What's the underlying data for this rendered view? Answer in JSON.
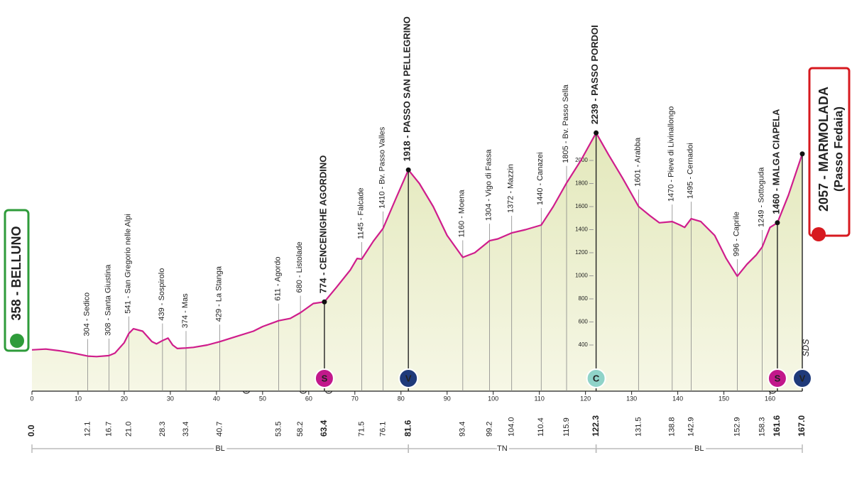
{
  "chart_data": {
    "type": "area",
    "color": "#cf1d8c",
    "xlim": [
      0,
      167
    ],
    "ylim": [
      0,
      2400
    ],
    "xticks": [
      0,
      10,
      20,
      30,
      40,
      50,
      60,
      70,
      80,
      90,
      100,
      110,
      120,
      130,
      140,
      150,
      160
    ],
    "yticks": [
      400,
      600,
      800,
      1000,
      1200,
      1400,
      1600,
      1800,
      2000
    ],
    "x": [
      0,
      3,
      6,
      9,
      12.1,
      14,
      16.7,
      18,
      20,
      21,
      22,
      24,
      26,
      27,
      28.3,
      29.5,
      30.5,
      31.5,
      33.4,
      35,
      38,
      40.7,
      44,
      48,
      50,
      53.5,
      56,
      58.2,
      61,
      63.4,
      66,
      69,
      70.5,
      71.5,
      74,
      76.1,
      79,
      81.6,
      84,
      87,
      90,
      93.4,
      96,
      99.2,
      101,
      104,
      107,
      110.4,
      113,
      115.9,
      119,
      122.3,
      125,
      128,
      131.5,
      134,
      136,
      138.8,
      140.5,
      141.5,
      142.9,
      145,
      148,
      150.5,
      152.9,
      155,
      157,
      158.3,
      160,
      161.6,
      164,
      167
    ],
    "values": [
      358,
      365,
      350,
      330,
      304,
      300,
      308,
      330,
      420,
      500,
      541,
      520,
      430,
      410,
      439,
      460,
      400,
      370,
      374,
      380,
      400,
      429,
      470,
      520,
      560,
      611,
      630,
      680,
      760,
      774,
      900,
      1050,
      1150,
      1145,
      1300,
      1410,
      1680,
      1918,
      1800,
      1600,
      1350,
      1160,
      1200,
      1304,
      1320,
      1372,
      1400,
      1440,
      1600,
      1805,
      2000,
      2239,
      2050,
      1850,
      1601,
      1520,
      1460,
      1470,
      1440,
      1420,
      1495,
      1470,
      1350,
      1150,
      996,
      1100,
      1180,
      1249,
      1420,
      1460,
      1700,
      2057
    ],
    "start": {
      "label": "358 - BELLUNO",
      "km": {
        "value": 0,
        "label": "0.0"
      },
      "color": "#2e9b3a"
    },
    "finish": {
      "label": "2057 - MARMOLADA",
      "sublabel": "(Passo Fedaia)",
      "km": {
        "value": 167,
        "label": "167.0"
      },
      "color": "#d7191f",
      "badge": {
        "text": "V",
        "color": "#1f3a7a"
      },
      "note": "SDS"
    },
    "waypoints": [
      {
        "label": "304 - Sedico",
        "km": 12.1
      },
      {
        "label": "308 - Santa Giustina",
        "km": 16.7
      },
      {
        "label": "541 - San Gregorio nelle Alpi",
        "km": {
          "value": 21,
          "label": "21.0"
        }
      },
      {
        "label": "439 - Sospirolo",
        "km": 28.3
      },
      {
        "label": "374 - Mas",
        "km": 33.4
      },
      {
        "label": "429 - La Stanga",
        "km": 40.7
      },
      {
        "label": "611 - Agordo",
        "km": 53.5
      },
      {
        "label": "680 - Listolade",
        "km": 58.2
      },
      {
        "label": "774 - CENCENIGHE AGORDINO",
        "km": 63.4,
        "major": true,
        "badge": {
          "text": "S",
          "color": "#c2188b"
        }
      },
      {
        "label": "1145 - Falcade",
        "km": 71.5
      },
      {
        "label": "1410 - Bv. Passo Valles",
        "km": 76.1
      },
      {
        "label": "1918 - PASSO SAN PELLEGRINO",
        "km": 81.6,
        "major": true,
        "badge": {
          "text": "V",
          "color": "#1f3a7a"
        }
      },
      {
        "label": "1160 - Moena",
        "km": 93.4
      },
      {
        "label": "1304 - Vigo di Fassa",
        "km": 99.2
      },
      {
        "label": "1372 - Mazzin",
        "km": {
          "value": 104,
          "label": "104.0"
        }
      },
      {
        "label": "1440 - Canazei",
        "km": 110.4
      },
      {
        "label": "1805 - Bv. Passo Sella",
        "km": 115.9
      },
      {
        "label": "2239 - PASSO PORDOI",
        "km": 122.3,
        "major": true,
        "badge": {
          "text": "C",
          "color": "#8fd3c8"
        }
      },
      {
        "label": "1601 - Arabba",
        "km": 131.5
      },
      {
        "label": "1470 - Pieve di Livinallongo",
        "km": 138.8
      },
      {
        "label": "1495 - Cernadoi",
        "km": 142.9
      },
      {
        "label": "996 - Caprile",
        "km": 152.9
      },
      {
        "label": "1249 - Sottoguda",
        "km": 158.3
      },
      {
        "label": "1460 - MALGA CIAPELA",
        "km": 161.6,
        "major": true,
        "badge": {
          "text": "S",
          "color": "#c2188b"
        }
      }
    ],
    "regions": [
      {
        "label": "BL",
        "from": 0,
        "to": 81.6
      },
      {
        "label": "TN",
        "from": 81.6,
        "to": 122.3
      },
      {
        "label": "BL",
        "from": 122.3,
        "to": 167
      }
    ]
  }
}
